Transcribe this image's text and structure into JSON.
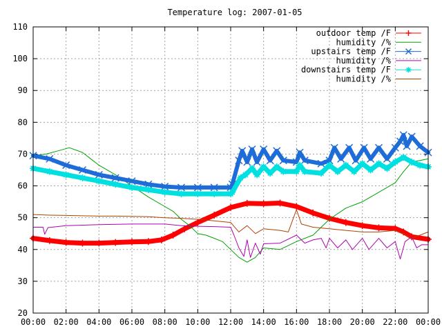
{
  "chart_data": {
    "type": "line",
    "title": "Temperature log: 2007-01-05",
    "xlabel": "",
    "ylabel": "",
    "x_unit": "hours",
    "xlim": [
      0,
      24
    ],
    "ylim": [
      20,
      110
    ],
    "x_ticks": [
      "00:00",
      "02:00",
      "04:00",
      "06:00",
      "08:00",
      "10:00",
      "12:00",
      "14:00",
      "16:00",
      "18:00",
      "20:00",
      "22:00",
      "00:00"
    ],
    "y_ticks": [
      20,
      30,
      40,
      50,
      60,
      70,
      80,
      90,
      100,
      110
    ],
    "grid": true,
    "legend_position": "top-right",
    "series": [
      {
        "name": "outdoor temp /F",
        "color": "#ff0000",
        "marker": "plus",
        "line_width": 7,
        "points": [
          [
            0,
            43.5
          ],
          [
            1,
            42.8
          ],
          [
            2,
            42.2
          ],
          [
            3,
            42.0
          ],
          [
            4,
            42.0
          ],
          [
            5,
            42.2
          ],
          [
            6,
            42.4
          ],
          [
            7,
            42.5
          ],
          [
            7.8,
            43.0
          ],
          [
            8.5,
            44.5
          ],
          [
            9.2,
            46.5
          ],
          [
            10,
            48.5
          ],
          [
            11,
            50.8
          ],
          [
            12,
            53.2
          ],
          [
            13,
            54.5
          ],
          [
            14,
            54.4
          ],
          [
            15,
            54.6
          ],
          [
            16,
            53.5
          ],
          [
            17,
            51.5
          ],
          [
            18,
            49.8
          ],
          [
            19,
            48.5
          ],
          [
            20,
            47.5
          ],
          [
            21,
            46.8
          ],
          [
            22,
            46.6
          ],
          [
            22.5,
            45.5
          ],
          [
            23,
            44.0
          ],
          [
            24,
            43.2
          ]
        ]
      },
      {
        "name": "humidity /%",
        "color": "#00a000",
        "marker": "none",
        "line_width": 1,
        "points": [
          [
            0,
            69.5
          ],
          [
            0.8,
            70.0
          ],
          [
            1.5,
            71.0
          ],
          [
            2.2,
            72.0
          ],
          [
            3,
            70.5
          ],
          [
            4,
            66.5
          ],
          [
            5,
            63.5
          ],
          [
            6,
            60.0
          ],
          [
            7,
            56.5
          ],
          [
            8,
            53.5
          ],
          [
            8.5,
            52.0
          ],
          [
            9,
            49.5
          ],
          [
            9.5,
            47.5
          ],
          [
            10,
            45.0
          ],
          [
            10.5,
            44.5
          ],
          [
            11,
            43.5
          ],
          [
            11.5,
            42.5
          ],
          [
            12,
            40.0
          ],
          [
            12.5,
            37.5
          ],
          [
            13,
            36.0
          ],
          [
            13.5,
            37.5
          ],
          [
            14,
            40.5
          ],
          [
            15,
            40.0
          ],
          [
            16,
            42.5
          ],
          [
            17,
            44.5
          ],
          [
            18,
            49.5
          ],
          [
            19,
            53.0
          ],
          [
            20,
            55.0
          ],
          [
            21,
            58.0
          ],
          [
            22,
            61.0
          ],
          [
            22.5,
            64.5
          ],
          [
            23,
            67.5
          ],
          [
            24,
            68.5
          ]
        ]
      },
      {
        "name": "upstairs temp /F",
        "color": "#1e6cd8",
        "marker": "x",
        "line_width": 6,
        "points": [
          [
            0,
            69.5
          ],
          [
            1,
            68.5
          ],
          [
            2,
            66.5
          ],
          [
            3,
            65.0
          ],
          [
            4,
            63.5
          ],
          [
            5,
            62.5
          ],
          [
            6,
            61.5
          ],
          [
            7,
            60.5
          ],
          [
            8,
            59.8
          ],
          [
            9,
            59.5
          ],
          [
            10,
            59.5
          ],
          [
            11,
            59.5
          ],
          [
            12,
            59.5
          ],
          [
            12.1,
            60.5
          ],
          [
            12.5,
            68.0
          ],
          [
            12.7,
            71.0
          ],
          [
            13,
            67.5
          ],
          [
            13.3,
            71.5
          ],
          [
            13.6,
            67.5
          ],
          [
            14,
            71.5
          ],
          [
            14.4,
            68.0
          ],
          [
            14.8,
            71.0
          ],
          [
            15.2,
            68.0
          ],
          [
            16,
            67.5
          ],
          [
            16.2,
            70.5
          ],
          [
            16.5,
            68.0
          ],
          [
            17.5,
            67.0
          ],
          [
            18,
            68.0
          ],
          [
            18.3,
            72.0
          ],
          [
            18.7,
            68.5
          ],
          [
            19.2,
            72.0
          ],
          [
            19.6,
            68.0
          ],
          [
            20.1,
            72.0
          ],
          [
            20.5,
            68.5
          ],
          [
            21,
            72.0
          ],
          [
            21.5,
            68.5
          ],
          [
            22,
            72.0
          ],
          [
            22.3,
            74.0
          ],
          [
            22.5,
            76.0
          ],
          [
            22.7,
            72.5
          ],
          [
            23,
            75.5
          ],
          [
            23.5,
            72.5
          ],
          [
            24,
            70.5
          ]
        ]
      },
      {
        "name": "humidity /%",
        "color": "#b000b0",
        "marker": "none",
        "line_width": 1,
        "points": [
          [
            0,
            47.0
          ],
          [
            0.6,
            47.0
          ],
          [
            0.7,
            44.8
          ],
          [
            0.9,
            46.9
          ],
          [
            2,
            47.5
          ],
          [
            4,
            47.8
          ],
          [
            6,
            48.0
          ],
          [
            8,
            48.0
          ],
          [
            9,
            47.5
          ],
          [
            10,
            47.3
          ],
          [
            11,
            47.2
          ],
          [
            12,
            47.0
          ],
          [
            12.2,
            44.5
          ],
          [
            12.5,
            40.5
          ],
          [
            12.8,
            37.8
          ],
          [
            13,
            43.0
          ],
          [
            13.2,
            37.5
          ],
          [
            13.5,
            42.0
          ],
          [
            13.8,
            38.5
          ],
          [
            14,
            41.8
          ],
          [
            15,
            42.0
          ],
          [
            16,
            44.5
          ],
          [
            16.5,
            42.0
          ],
          [
            17,
            43.0
          ],
          [
            17.5,
            43.5
          ],
          [
            17.8,
            40.5
          ],
          [
            18,
            43.5
          ],
          [
            18.5,
            40.5
          ],
          [
            19,
            43.0
          ],
          [
            19.4,
            40.0
          ],
          [
            20,
            43.5
          ],
          [
            20.4,
            40.0
          ],
          [
            21,
            43.5
          ],
          [
            21.5,
            40.5
          ],
          [
            22,
            42.5
          ],
          [
            22.3,
            37.0
          ],
          [
            22.6,
            42.5
          ],
          [
            23,
            44.0
          ],
          [
            23.3,
            40.5
          ],
          [
            23.6,
            41.5
          ],
          [
            24,
            41.5
          ]
        ]
      },
      {
        "name": "downstairs temp /F",
        "color": "#00e0e0",
        "marker": "star",
        "line_width": 7,
        "points": [
          [
            0,
            65.5
          ],
          [
            1,
            64.5
          ],
          [
            2,
            63.5
          ],
          [
            3,
            62.5
          ],
          [
            4,
            61.5
          ],
          [
            5,
            60.5
          ],
          [
            6,
            59.5
          ],
          [
            7,
            58.8
          ],
          [
            8,
            58.0
          ],
          [
            9,
            57.5
          ],
          [
            10,
            57.5
          ],
          [
            11,
            57.5
          ],
          [
            12,
            57.5
          ],
          [
            12.1,
            58.0
          ],
          [
            12.6,
            62.5
          ],
          [
            12.9,
            63.5
          ],
          [
            13.3,
            65.5
          ],
          [
            13.6,
            63.5
          ],
          [
            14,
            66.0
          ],
          [
            14.4,
            64.0
          ],
          [
            14.8,
            66.0
          ],
          [
            15.2,
            64.5
          ],
          [
            16,
            64.5
          ],
          [
            16.2,
            66.5
          ],
          [
            16.5,
            64.5
          ],
          [
            17.5,
            64.0
          ],
          [
            18,
            66.5
          ],
          [
            18.5,
            64.5
          ],
          [
            19,
            66.5
          ],
          [
            19.5,
            64.5
          ],
          [
            20,
            67.0
          ],
          [
            20.5,
            65.0
          ],
          [
            21,
            67.0
          ],
          [
            21.5,
            65.5
          ],
          [
            22,
            67.5
          ],
          [
            22.5,
            69.0
          ],
          [
            23,
            67.5
          ],
          [
            23.5,
            66.5
          ],
          [
            24,
            66.0
          ]
        ]
      },
      {
        "name": "humidity /%",
        "color": "#b04000",
        "marker": "none",
        "line_width": 1,
        "points": [
          [
            0,
            51.0
          ],
          [
            1,
            50.8
          ],
          [
            2,
            50.7
          ],
          [
            3,
            50.6
          ],
          [
            4,
            50.5
          ],
          [
            5,
            50.5
          ],
          [
            6,
            50.4
          ],
          [
            7,
            50.3
          ],
          [
            8,
            50.0
          ],
          [
            9,
            49.8
          ],
          [
            10,
            49.5
          ],
          [
            11,
            49.0
          ],
          [
            12,
            48.5
          ],
          [
            12.5,
            45.5
          ],
          [
            13,
            47.5
          ],
          [
            13.5,
            45.0
          ],
          [
            14,
            46.5
          ],
          [
            15,
            46.0
          ],
          [
            15.5,
            45.5
          ],
          [
            16,
            52.5
          ],
          [
            16.3,
            48.0
          ],
          [
            17,
            47.0
          ],
          [
            18,
            46.5
          ],
          [
            19,
            46.0
          ],
          [
            20,
            45.5
          ],
          [
            21,
            45.5
          ],
          [
            22,
            46.0
          ],
          [
            22.5,
            45.0
          ],
          [
            23,
            43.5
          ],
          [
            23.5,
            44.5
          ],
          [
            24,
            45.5
          ]
        ]
      }
    ]
  }
}
